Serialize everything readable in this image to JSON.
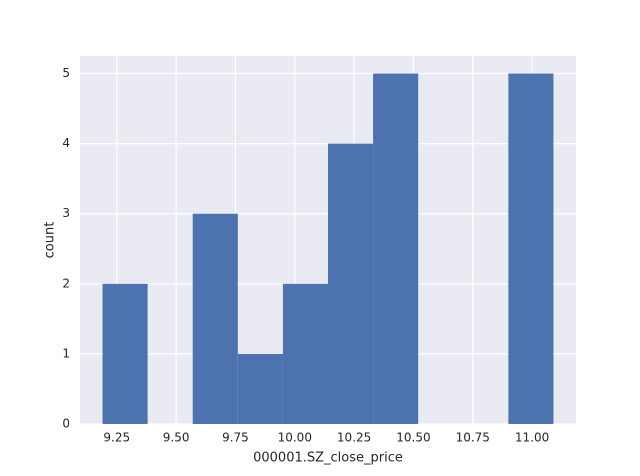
{
  "chart_data": {
    "type": "histogram",
    "xlabel": "000001.SZ_close_price",
    "ylabel": "count",
    "bins": [
      9.19,
      9.38,
      9.57,
      9.76,
      9.95,
      10.14,
      10.33,
      10.52,
      10.71,
      10.9,
      11.09
    ],
    "counts": [
      2,
      0,
      3,
      1,
      2,
      4,
      5,
      0,
      0,
      5
    ],
    "color": "#4c72b0",
    "xlim": [
      9.095,
      11.185
    ],
    "ylim": [
      0,
      5.25
    ],
    "xticks": [
      9.25,
      {
        "value": 9.5,
        "label": "9.50"
      },
      9.75,
      {
        "value": 10,
        "label": "10.00"
      },
      10.25,
      {
        "value": 10.5,
        "label": "10.50"
      },
      10.75,
      {
        "value": 11,
        "label": "11.00"
      }
    ],
    "yticks": [
      0,
      1,
      2,
      3,
      4,
      5
    ],
    "grid": true
  }
}
